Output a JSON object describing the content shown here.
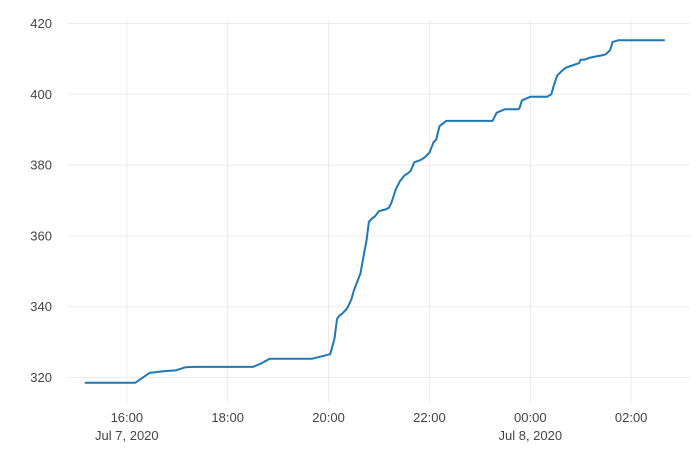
{
  "chart_data": {
    "type": "line",
    "title": "",
    "xlabel": "",
    "ylabel": "",
    "grid": true,
    "legend": "none",
    "x_range": [
      "2020-07-07 14:50",
      "2020-07-08 03:10"
    ],
    "y_range": [
      312.8,
      421
    ],
    "x_ticks": [
      {
        "x": "2020-07-07 16:00",
        "label": "16:00",
        "sublabel": "Jul 7, 2020"
      },
      {
        "x": "2020-07-07 18:00",
        "label": "18:00",
        "sublabel": ""
      },
      {
        "x": "2020-07-07 20:00",
        "label": "20:00",
        "sublabel": ""
      },
      {
        "x": "2020-07-07 22:00",
        "label": "22:00",
        "sublabel": ""
      },
      {
        "x": "2020-07-08 00:00",
        "label": "00:00",
        "sublabel": "Jul 8, 2020"
      },
      {
        "x": "2020-07-08 02:00",
        "label": "02:00",
        "sublabel": ""
      }
    ],
    "y_ticks": [
      320,
      340,
      360,
      380,
      400,
      420
    ],
    "line_color": "#1f77b4",
    "series": [
      {
        "x": [
          "2020-07-07 15:10",
          "2020-07-07 16:10",
          "2020-07-07 16:27",
          "2020-07-07 16:45",
          "2020-07-07 16:58",
          "2020-07-07 17:10",
          "2020-07-07 17:20",
          "2020-07-07 17:40",
          "2020-07-07 18:30",
          "2020-07-07 18:40",
          "2020-07-07 18:50",
          "2020-07-07 19:10",
          "2020-07-07 19:40",
          "2020-07-07 19:52",
          "2020-07-07 20:02",
          "2020-07-07 20:07",
          "2020-07-07 20:10",
          "2020-07-07 20:13",
          "2020-07-07 20:16",
          "2020-07-07 20:22",
          "2020-07-07 20:27",
          "2020-07-07 20:30",
          "2020-07-07 20:38",
          "2020-07-07 20:42",
          "2020-07-07 20:45",
          "2020-07-07 20:48",
          "2020-07-07 20:52",
          "2020-07-07 20:55",
          "2020-07-07 21:00",
          "2020-07-07 21:08",
          "2020-07-07 21:12",
          "2020-07-07 21:15",
          "2020-07-07 21:20",
          "2020-07-07 21:25",
          "2020-07-07 21:30",
          "2020-07-07 21:35",
          "2020-07-07 21:38",
          "2020-07-07 21:42",
          "2020-07-07 21:50",
          "2020-07-07 21:55",
          "2020-07-07 22:00",
          "2020-07-07 22:05",
          "2020-07-07 22:08",
          "2020-07-07 22:12",
          "2020-07-07 22:20",
          "2020-07-07 22:30",
          "2020-07-07 23:15",
          "2020-07-07 23:20",
          "2020-07-07 23:30",
          "2020-07-07 23:45",
          "2020-07-07 23:47",
          "2020-07-07 23:50",
          "2020-07-07 23:55",
          "2020-07-08 00:00",
          "2020-07-08 00:20",
          "2020-07-08 00:25",
          "2020-07-08 00:28",
          "2020-07-08 00:32",
          "2020-07-08 00:37",
          "2020-07-08 00:42",
          "2020-07-08 00:48",
          "2020-07-08 00:58",
          "2020-07-08 01:00",
          "2020-07-08 01:05",
          "2020-07-08 01:10",
          "2020-07-08 01:20",
          "2020-07-08 01:25",
          "2020-07-08 01:30",
          "2020-07-08 01:35",
          "2020-07-08 01:38",
          "2020-07-08 01:45",
          "2020-07-08 02:40"
        ],
        "y": [
          318.5,
          318.5,
          321.3,
          321.8,
          322.0,
          322.9,
          323.0,
          323.0,
          323.0,
          324.0,
          325.3,
          325.3,
          325.3,
          326.0,
          326.6,
          331.0,
          336.5,
          337.5,
          338.0,
          339.5,
          342.0,
          344.5,
          349.5,
          354.8,
          358.5,
          364.0,
          365.0,
          365.5,
          367.0,
          367.5,
          368.0,
          369.5,
          373.2,
          375.5,
          377.0,
          377.8,
          378.5,
          380.8,
          381.5,
          382.3,
          383.5,
          386.5,
          387.2,
          391.0,
          392.5,
          392.5,
          392.5,
          394.8,
          395.8,
          395.8,
          396.0,
          398.3,
          398.8,
          399.3,
          399.3,
          400.0,
          402.5,
          405.3,
          406.5,
          407.5,
          408.0,
          408.8,
          409.8,
          409.8,
          410.3,
          410.8,
          411.0,
          411.3,
          412.5,
          414.8,
          415.3,
          415.3
        ]
      }
    ]
  }
}
